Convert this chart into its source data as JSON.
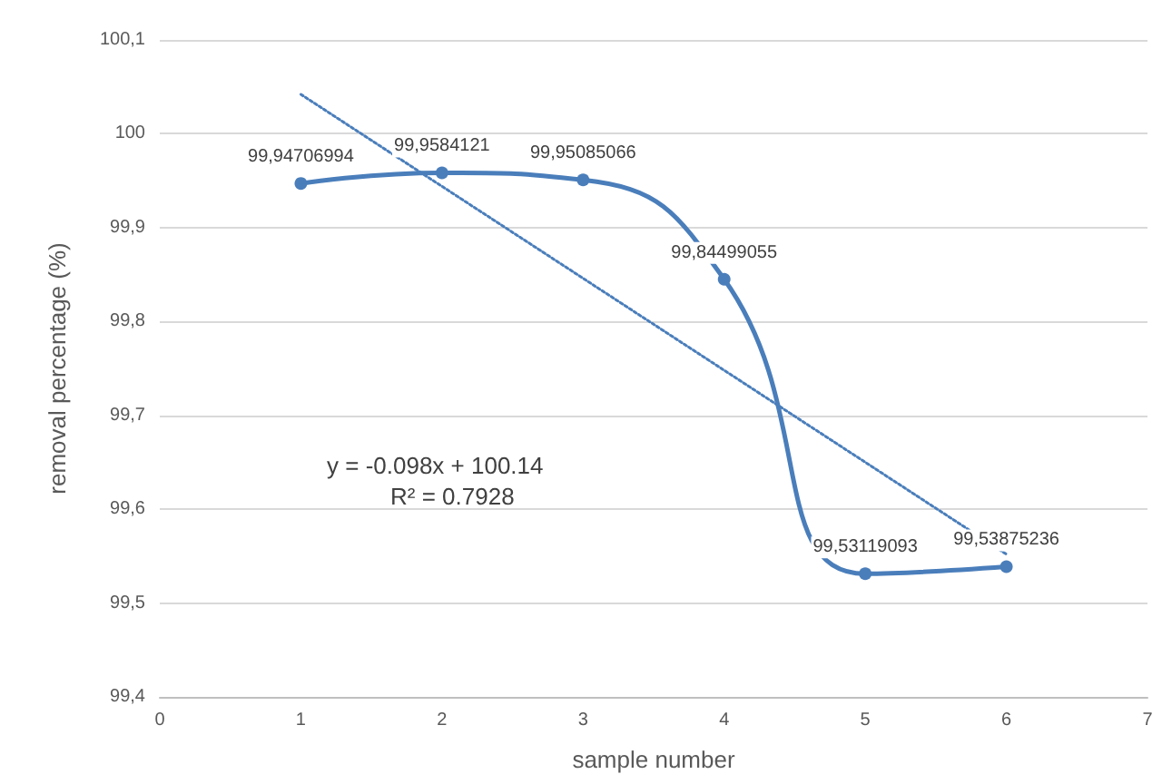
{
  "chart_data": {
    "type": "line",
    "xlabel": "sample number",
    "ylabel": "removal percentage (%)",
    "x": [
      1,
      2,
      3,
      4,
      5,
      6
    ],
    "series": [
      {
        "color": "#4a7ebb",
        "values": [
          99.94706994,
          99.9584121,
          99.95085066,
          99.84499055,
          99.53119093,
          99.53875236
        ],
        "value_labels": [
          "99,94706994",
          "99,9584121",
          "99,95085066",
          "99,84499055",
          "99,53119093",
          "99,53875236"
        ],
        "marker": "circle",
        "line_style": "solid"
      },
      {
        "color": "#4a7ebb",
        "x": [
          1,
          6
        ],
        "values": [
          100.042,
          99.552
        ],
        "marker": "none",
        "line_style": "dotted"
      }
    ],
    "xlim": [
      0,
      7
    ],
    "xticks": [
      0,
      1,
      2,
      3,
      4,
      5,
      6,
      7
    ],
    "ylim": [
      99.4,
      100.1
    ],
    "yticks": [
      {
        "value": 99.4,
        "label": "99,4"
      },
      {
        "value": 99.5,
        "label": "99,5"
      },
      {
        "value": 99.6,
        "label": "99,6"
      },
      {
        "value": 99.7,
        "label": "99,7"
      },
      {
        "value": 99.8,
        "label": "99,8"
      },
      {
        "value": 99.9,
        "label": "99,9"
      },
      {
        "value": 100,
        "label": "100"
      },
      {
        "value": 100.1,
        "label": "100,1"
      }
    ],
    "grid": "y",
    "annotations": [
      "y = -0.098x + 100.14",
      "R² = 0.7928"
    ]
  }
}
